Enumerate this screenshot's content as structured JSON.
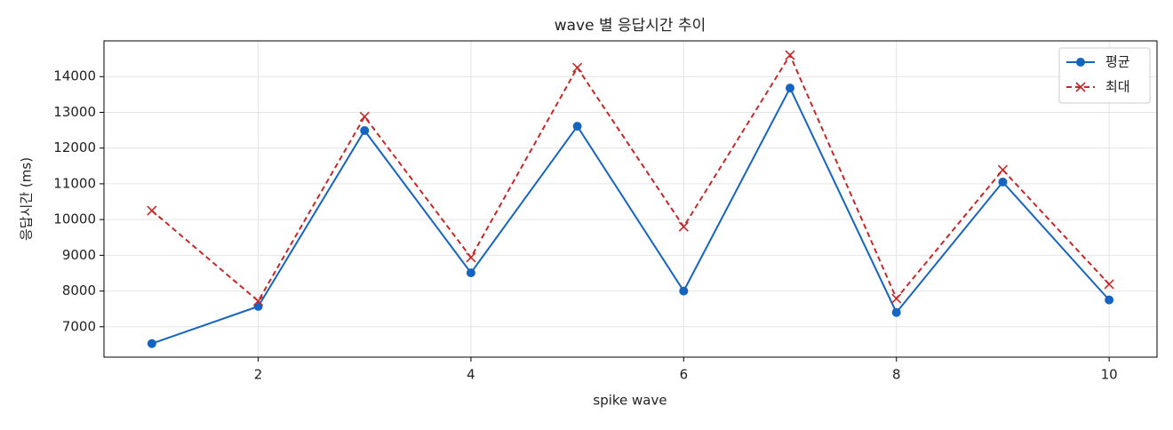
{
  "chart_data": {
    "type": "line",
    "title": "wave 별 응답시간 추이",
    "x_label": "spike wave",
    "y_label": "응답시간 (ms)",
    "x": [
      1,
      2,
      3,
      4,
      5,
      6,
      7,
      8,
      9,
      10
    ],
    "series": [
      {
        "name": "평균",
        "color": "#1565c0",
        "marker": "circle",
        "linestyle": "solid",
        "values": [
          6530,
          7570,
          12490,
          8510,
          12610,
          8000,
          13680,
          7400,
          11050,
          7750
        ]
      },
      {
        "name": "최대",
        "color": "#c62828",
        "marker": "x",
        "linestyle": "dashed",
        "values": [
          10250,
          7720,
          12880,
          8940,
          14250,
          9800,
          14600,
          7790,
          11390,
          8190
        ]
      }
    ],
    "xlim": [
      0.55,
      10.45
    ],
    "xticks": [
      2,
      4,
      6,
      8,
      10
    ],
    "ylim": [
      6150,
      15000
    ],
    "yticks": [
      7000,
      8000,
      9000,
      10000,
      11000,
      12000,
      13000,
      14000
    ],
    "grid": true,
    "legend": "upper right"
  }
}
